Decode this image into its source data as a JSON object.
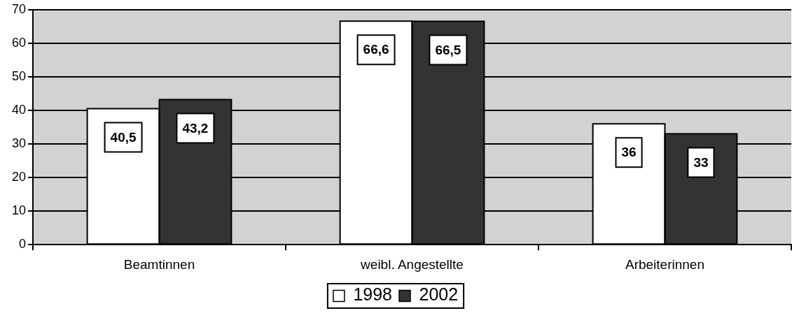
{
  "chart_data": {
    "type": "bar",
    "categories": [
      "Beamtinnen",
      "weibl. Angestellte",
      "Arbeiterinnen"
    ],
    "series": [
      {
        "name": "1998",
        "color": "#ffffff",
        "values": [
          40.5,
          66.6,
          36
        ],
        "value_labels": [
          "40,5",
          "66,6",
          "36"
        ]
      },
      {
        "name": "2002",
        "color": "#333333",
        "values": [
          43.2,
          66.5,
          33
        ],
        "value_labels": [
          "43,2",
          "66,5",
          "33"
        ]
      }
    ],
    "ylim": [
      0,
      70
    ],
    "yticks": [
      0,
      10,
      20,
      30,
      40,
      50,
      60,
      70
    ],
    "grid": "y",
    "legend": "bottom"
  }
}
